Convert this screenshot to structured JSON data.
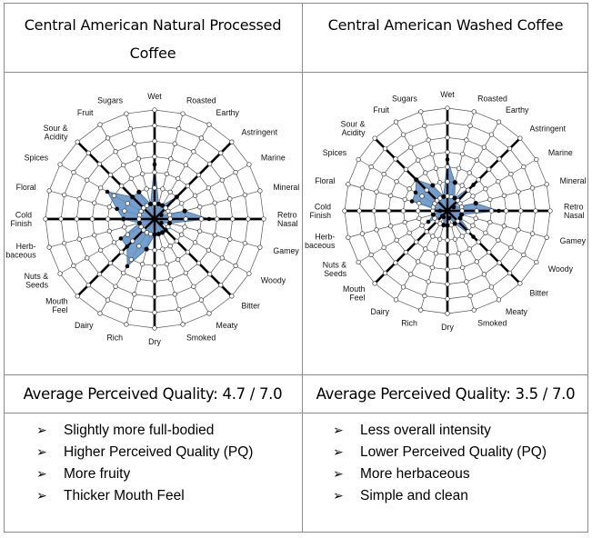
{
  "charts": [
    {
      "title_line1": "Central American Natural Processed",
      "title_line2": "Coffee",
      "pq_text": "Average Perceived Quality: 4.7 / 7.0",
      "bullets": [
        "Slightly more full-bodied",
        "Higher Perceived Quality (PQ)",
        "More fruity",
        "Thicker Mouth Feel"
      ]
    },
    {
      "title_line1": "Central American Washed Coffee",
      "title_line2": "",
      "pq_text": "Average Perceived Quality: 3.5 / 7.0",
      "bullets": [
        "Less overall intensity",
        "Lower Perceived Quality (PQ)",
        "More herbaceous",
        "Simple and clean"
      ]
    }
  ],
  "bullet_icon": "arrowhead-bullet-icon",
  "colors": {
    "fill": "#5b8fc7",
    "stroke": "#3d6fa8",
    "grid": "#333333",
    "border": "#8a8a8a"
  },
  "chart_data": [
    {
      "type": "radar",
      "scale": [
        0,
        7
      ],
      "categories": [
        "Wet",
        "Roasted",
        "Earthy",
        "Astringent",
        "Marine",
        "Mineral",
        "Retro\nNasal",
        "Gamey",
        "Woody",
        "Bitter",
        "Meaty",
        "Smoked",
        "Dry",
        "Rich",
        "Dairy",
        "Mouth\nFeel",
        "Nuts &\nSeeds",
        "Herb-\nbaceous",
        "Cold\nFinish",
        "Floral",
        "Spices",
        "Sour &\nAcidity",
        "Fruit",
        "Sugars"
      ],
      "values": [
        3.5,
        1.0,
        1.0,
        2.0,
        0.5,
        2.0,
        3.5,
        1.0,
        0.5,
        1.0,
        1.0,
        1.0,
        1.0,
        2.0,
        3.5,
        2.5,
        2.5,
        1.0,
        2.0,
        2.5,
        3.5,
        2.0,
        2.0,
        1.0
      ]
    },
    {
      "type": "radar",
      "scale": [
        0,
        7
      ],
      "categories": [
        "Wet",
        "Roasted",
        "Earthy",
        "Astringent",
        "Marine",
        "Mineral",
        "Retro\nNasal",
        "Gamey",
        "Woody",
        "Bitter",
        "Meaty",
        "Smoked",
        "Dry",
        "Rich",
        "Dairy",
        "Mouth\nFeel",
        "Nuts &\nSeeds",
        "Herb-\nbaceous",
        "Cold\nFinish",
        "Floral",
        "Spices",
        "Sour &\nAcidity",
        "Fruit",
        "Sugars"
      ],
      "values": [
        3.5,
        2.0,
        1.0,
        2.5,
        0.5,
        2.0,
        3.5,
        1.0,
        1.0,
        2.5,
        1.0,
        0.5,
        1.0,
        1.0,
        0.5,
        0.5,
        1.5,
        1.0,
        0.5,
        2.5,
        2.5,
        3.0,
        2.0,
        1.0
      ]
    }
  ]
}
